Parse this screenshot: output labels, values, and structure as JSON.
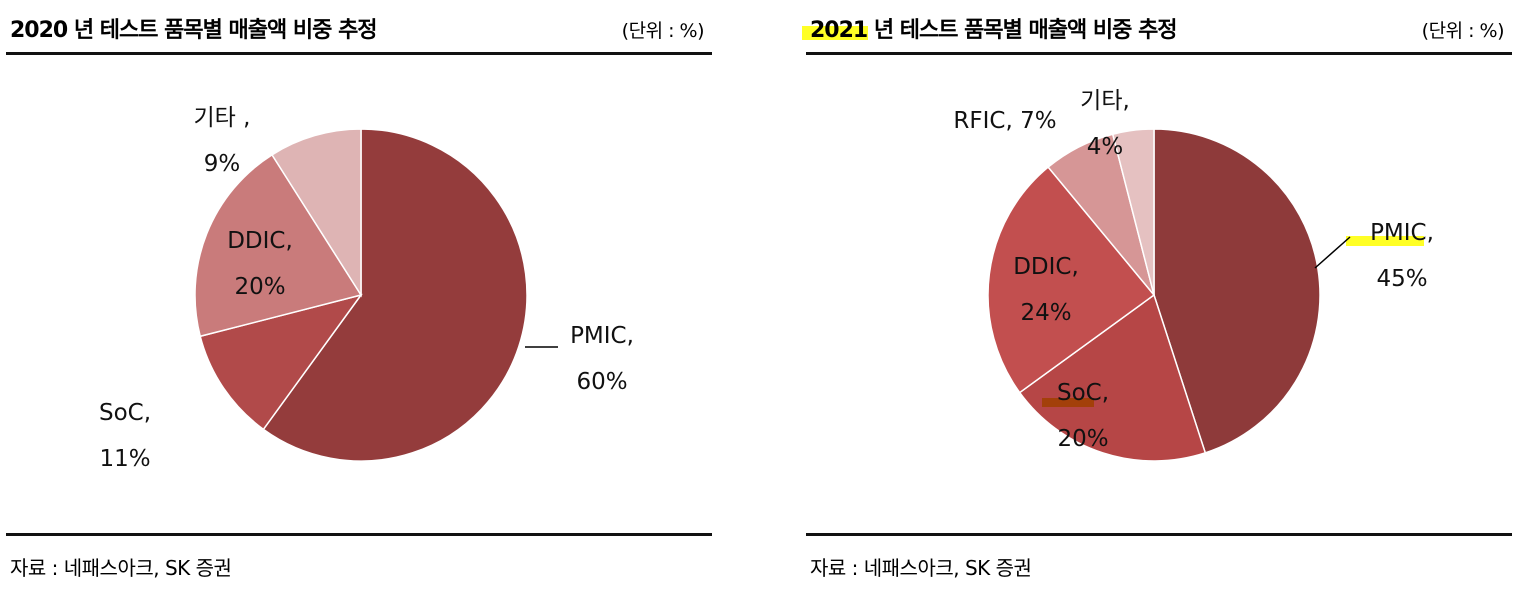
{
  "left": {
    "title": "2020 년 테스트 품목별 매출액 비중 추정",
    "unit": "(단위 : %)",
    "source": "자료 : 네패스아크, SK 증권"
  },
  "right": {
    "title_year": "2021",
    "title_rest": " 년 테스트 품목별 매출액 비중 추정",
    "unit": "(단위 : %)",
    "source": "자료 : 네패스아크, SK 증권"
  },
  "chart_data": [
    {
      "type": "pie",
      "title": "2020 년 테스트 품목별 매출액 비중 추정",
      "unit": "%",
      "categories": [
        "PMIC",
        "SoC",
        "DDIC",
        "기타"
      ],
      "values": [
        60,
        11,
        20,
        9
      ],
      "labels": [
        {
          "name": "PMIC,",
          "value": "60%"
        },
        {
          "name": "SoC,",
          "value": "11%"
        },
        {
          "name": "DDIC,",
          "value": "20%"
        },
        {
          "name": "기타 ,",
          "value": "9%"
        }
      ],
      "colors": [
        "#943c3c",
        "#b14a4a",
        "#c97b7b",
        "#deb4b4"
      ]
    },
    {
      "type": "pie",
      "title": "2021 년 테스트 품목별 매출액 비중 추정",
      "unit": "%",
      "categories": [
        "PMIC",
        "SoC",
        "DDIC",
        "RFIC",
        "기타"
      ],
      "values": [
        45,
        20,
        24,
        7,
        4
      ],
      "labels": [
        {
          "name": "PMIC,",
          "value": "45%"
        },
        {
          "name": "SoC,",
          "value": "20%"
        },
        {
          "name": "DDIC,",
          "value": "24%"
        },
        {
          "name": "RFIC, 7%",
          "value": ""
        },
        {
          "name": "기타,",
          "value": "4%"
        }
      ],
      "colors": [
        "#8e3a3a",
        "#b64646",
        "#c24f4f",
        "#d69696",
        "#e5c1c1"
      ]
    }
  ]
}
